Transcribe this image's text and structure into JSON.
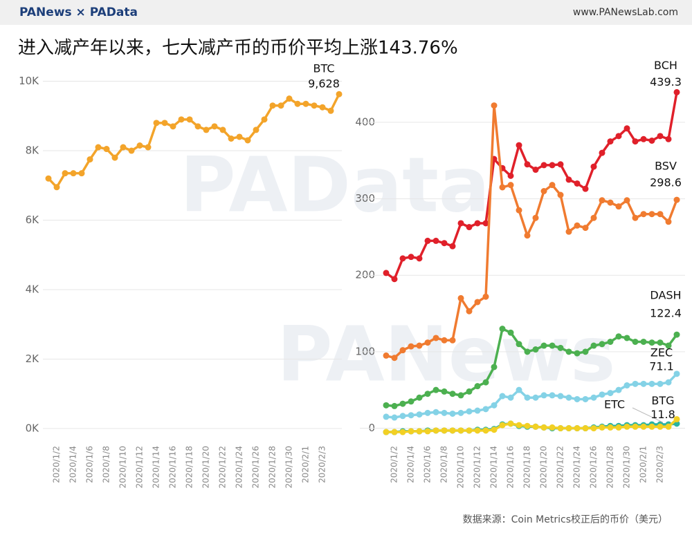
{
  "header": {
    "brand": "PANews × PAData",
    "url": "www.PANewsLab.com"
  },
  "title": "进入减产年以来，七大减产币的币价平均上涨143.76%",
  "watermarks": [
    "PAData",
    "PANews"
  ],
  "source": "数据来源：Coin Metrics校正后的币价（美元）",
  "chart_data": [
    {
      "type": "line",
      "categories": [
        null,
        "2020/1/2",
        null,
        "2020/1/4",
        null,
        "2020/1/6",
        null,
        "2020/1/8",
        null,
        "2020/1/10",
        null,
        "2020/1/12",
        null,
        "2020/1/14",
        null,
        "2020/1/16",
        null,
        "2020/1/18",
        null,
        "2020/1/20",
        null,
        "2020/1/22",
        null,
        "2020/1/24",
        null,
        "2020/1/26",
        null,
        "2020/1/28",
        null,
        "2020/1/30",
        null,
        "2020/2/1",
        null,
        "2020/2/3",
        null,
        null
      ],
      "ylim": [
        -300,
        10250
      ],
      "yticks": [
        {
          "value": 0,
          "label": "0K"
        },
        {
          "value": 2000,
          "label": "2K"
        },
        {
          "value": 4000,
          "label": "4K"
        },
        {
          "value": 6000,
          "label": "6K"
        },
        {
          "value": 8000,
          "label": "8K"
        },
        {
          "value": 10000,
          "label": "10K"
        }
      ],
      "grid": true,
      "series": [
        {
          "name": "BTC",
          "color": "#f3a42a",
          "values": [
            7200,
            6950,
            7350,
            7350,
            7350,
            7750,
            8100,
            8050,
            7800,
            8100,
            8000,
            8150,
            8100,
            8800,
            8800,
            8700,
            8900,
            8900,
            8700,
            8600,
            8700,
            8600,
            8350,
            8400,
            8300,
            8600,
            8900,
            9300,
            9300,
            9500,
            9350,
            9350,
            9300,
            9250,
            9150,
            9628
          ],
          "value_labels": [
            null,
            null,
            null,
            null,
            null,
            null,
            null,
            null,
            null,
            null,
            null,
            null,
            null,
            null,
            null,
            null,
            null,
            null,
            null,
            null,
            null,
            null,
            null,
            null,
            null,
            null,
            null,
            null,
            null,
            null,
            null,
            null,
            null,
            null,
            null,
            "9,628"
          ]
        }
      ]
    },
    {
      "type": "line",
      "categories": [
        null,
        "2020/1/2",
        null,
        "2020/1/4",
        null,
        "2020/1/6",
        null,
        "2020/1/8",
        null,
        "2020/1/10",
        null,
        "2020/1/12",
        null,
        "2020/1/14",
        null,
        "2020/1/16",
        null,
        "2020/1/18",
        null,
        "2020/1/20",
        null,
        "2020/1/22",
        null,
        "2020/1/24",
        null,
        "2020/1/26",
        null,
        "2020/1/28",
        null,
        "2020/1/30",
        null,
        "2020/2/1",
        null,
        "2020/2/3",
        null,
        null
      ],
      "ylim": [
        -14,
        465
      ],
      "yticks": [
        0,
        100,
        200,
        300,
        400
      ],
      "grid": true,
      "series": [
        {
          "name": "BCH",
          "color": "#e0202a",
          "values": [
            203,
            195,
            222,
            224,
            222,
            245,
            245,
            242,
            238,
            268,
            263,
            268,
            268,
            352,
            340,
            330,
            370,
            345,
            338,
            344,
            344,
            345,
            325,
            320,
            313,
            342,
            360,
            375,
            382,
            392,
            375,
            378,
            376,
            382,
            378,
            439.3
          ],
          "value_labels": [
            null,
            null,
            null,
            null,
            null,
            null,
            null,
            null,
            null,
            null,
            null,
            null,
            null,
            null,
            null,
            null,
            null,
            null,
            null,
            null,
            null,
            null,
            null,
            null,
            null,
            null,
            null,
            null,
            null,
            null,
            null,
            null,
            null,
            null,
            null,
            "439.3"
          ]
        },
        {
          "name": "BSV",
          "color": "#f07b30",
          "values": [
            95,
            92,
            102,
            107,
            108,
            112,
            118,
            115,
            115,
            170,
            153,
            165,
            172,
            422,
            315,
            318,
            285,
            252,
            275,
            310,
            318,
            305,
            257,
            265,
            262,
            275,
            298,
            295,
            290,
            298,
            275,
            280,
            280,
            280,
            270,
            298.6
          ],
          "value_labels": [
            null,
            null,
            null,
            null,
            null,
            null,
            null,
            null,
            null,
            null,
            null,
            null,
            null,
            null,
            null,
            null,
            null,
            null,
            null,
            null,
            null,
            null,
            null,
            null,
            null,
            null,
            null,
            null,
            null,
            null,
            null,
            null,
            null,
            null,
            null,
            "298.6"
          ]
        },
        {
          "name": "DASH",
          "color": "#4cb050",
          "values": [
            30,
            29,
            32,
            35,
            40,
            45,
            50,
            48,
            45,
            43,
            48,
            55,
            60,
            80,
            130,
            125,
            110,
            100,
            103,
            108,
            108,
            105,
            100,
            98,
            100,
            108,
            110,
            113,
            120,
            118,
            113,
            113,
            112,
            112,
            108,
            122.4
          ],
          "value_labels": [
            null,
            null,
            null,
            null,
            null,
            null,
            null,
            null,
            null,
            null,
            null,
            null,
            null,
            null,
            null,
            null,
            null,
            null,
            null,
            null,
            null,
            null,
            null,
            null,
            null,
            null,
            null,
            null,
            null,
            null,
            null,
            null,
            null,
            null,
            null,
            "122.4"
          ]
        },
        {
          "name": "ZEC",
          "color": "#84d2e6",
          "values": [
            15,
            14,
            16,
            17,
            18,
            20,
            21,
            20,
            19,
            20,
            22,
            23,
            25,
            30,
            42,
            40,
            50,
            40,
            40,
            43,
            43,
            42,
            40,
            38,
            38,
            40,
            44,
            46,
            50,
            56,
            58,
            58,
            58,
            58,
            60,
            71.1
          ],
          "value_labels": [
            null,
            null,
            null,
            null,
            null,
            null,
            null,
            null,
            null,
            null,
            null,
            null,
            null,
            null,
            null,
            null,
            null,
            null,
            null,
            null,
            null,
            null,
            null,
            null,
            null,
            null,
            null,
            null,
            null,
            null,
            null,
            null,
            null,
            null,
            null,
            "71.1"
          ]
        },
        {
          "name": "ETC",
          "color": "#2bb3a0",
          "values": [
            -5,
            -5,
            -4,
            -4,
            -4,
            -3,
            -3,
            -3,
            -3,
            -3,
            -3,
            -2,
            -2,
            -1,
            5,
            6,
            3,
            2,
            2,
            1,
            0,
            0,
            0,
            0,
            0,
            1,
            2,
            3,
            3,
            4,
            4,
            4,
            5,
            5,
            5,
            6
          ]
        },
        {
          "name": "BTG",
          "color": "#f2d024",
          "values": [
            -5,
            -5,
            -5,
            -4,
            -4,
            -4,
            -3,
            -3,
            -3,
            -3,
            -3,
            -3,
            -3,
            -2,
            4,
            6,
            4,
            3,
            2,
            1,
            1,
            0,
            0,
            0,
            0,
            0,
            1,
            1,
            1,
            2,
            2,
            2,
            2,
            2,
            2,
            11.8
          ],
          "value_labels": [
            null,
            null,
            null,
            null,
            null,
            null,
            null,
            null,
            null,
            null,
            null,
            null,
            null,
            null,
            null,
            null,
            null,
            null,
            null,
            null,
            null,
            null,
            null,
            null,
            null,
            null,
            null,
            null,
            null,
            null,
            null,
            null,
            null,
            null,
            null,
            "11.8"
          ]
        }
      ]
    }
  ]
}
